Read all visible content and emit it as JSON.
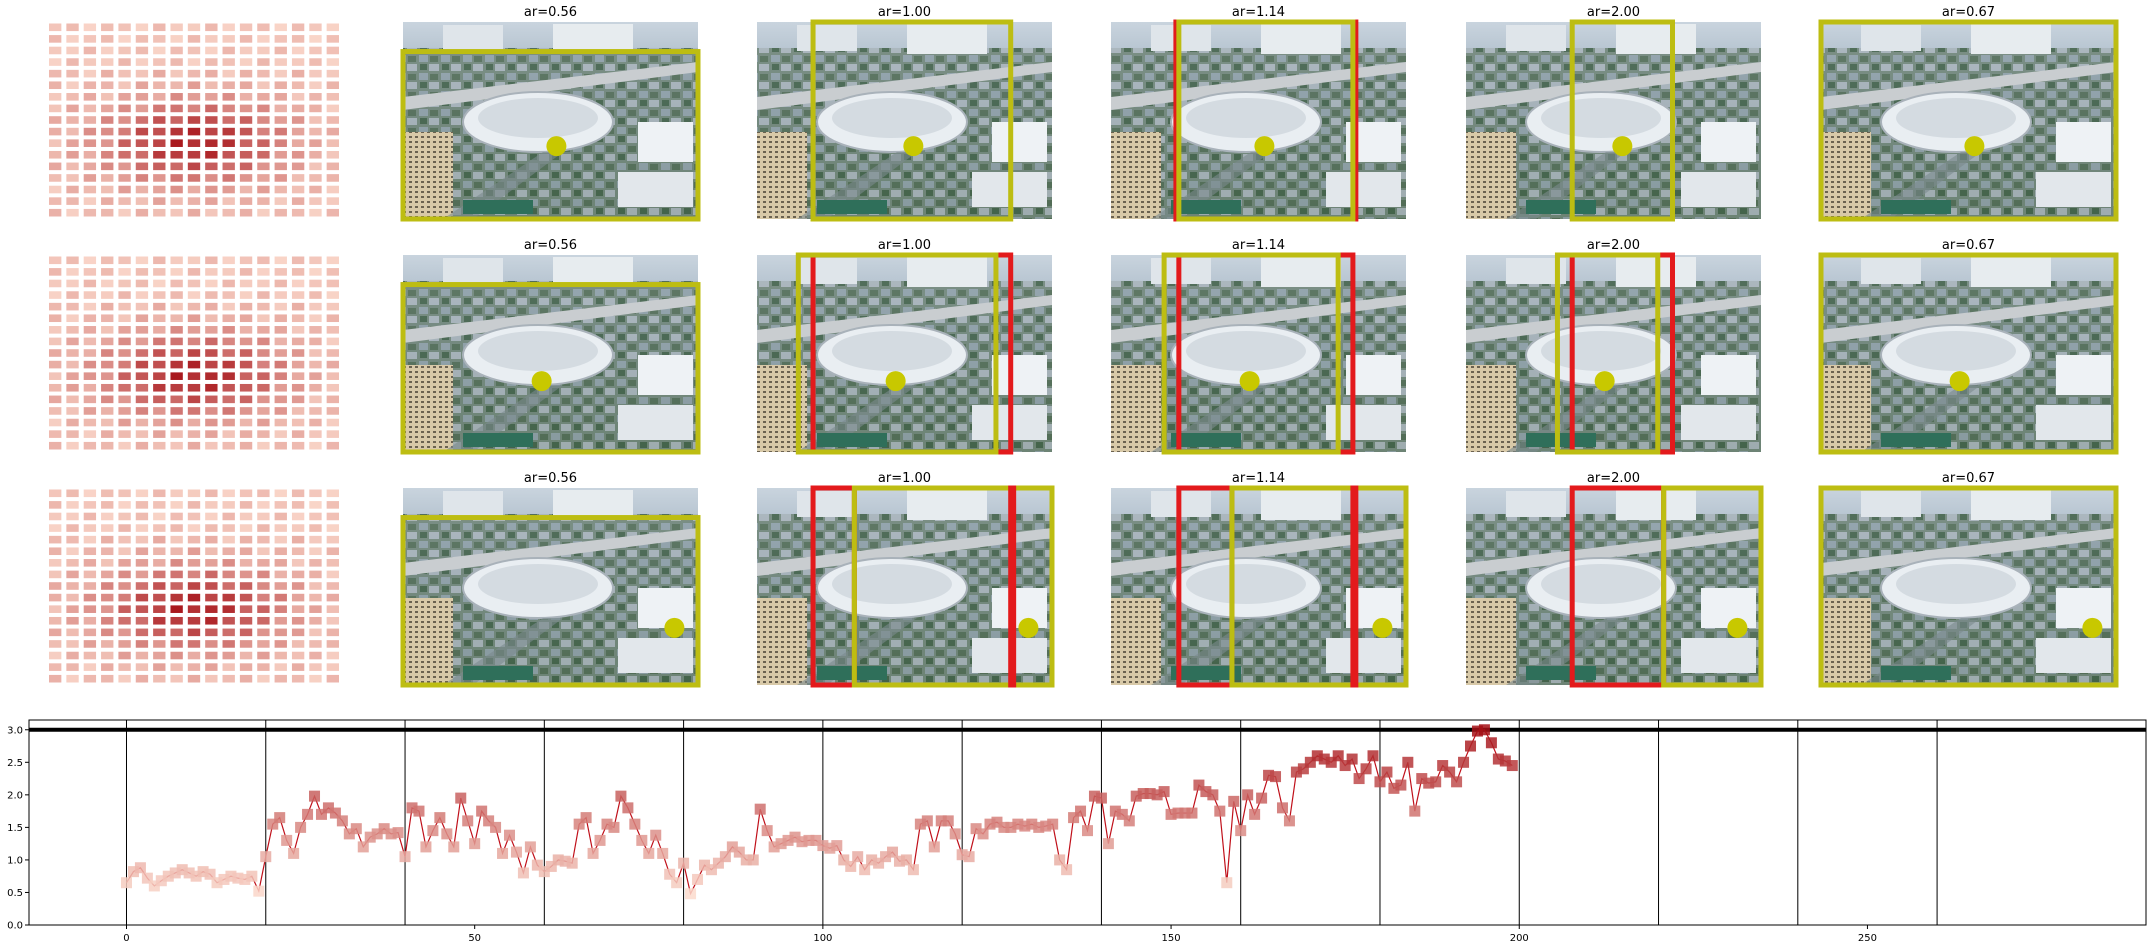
{
  "figure": {
    "rows": [
      {
        "titles": [
          "",
          "ar=0.56",
          "ar=1.00",
          "ar=1.14",
          "ar=2.00",
          "ar=0.67"
        ]
      },
      {
        "titles": [
          "",
          "ar=0.56",
          "ar=1.00",
          "ar=1.14",
          "ar=2.00",
          "ar=0.67"
        ]
      },
      {
        "titles": [
          "",
          "ar=0.56",
          "ar=1.00",
          "ar=1.14",
          "ar=2.00",
          "ar=0.67"
        ]
      }
    ],
    "colors": {
      "crop_box": "#bdbd12",
      "alt_box": "#e31a1c",
      "point": "#c8c800",
      "heat_low": "#fee0d2",
      "heat_high": "#a50f15",
      "line": "#c0101a"
    }
  },
  "chart_data": {
    "type": "line",
    "title": "",
    "xlabel": "",
    "ylabel": "",
    "xlim": [
      -14,
      290
    ],
    "ylim": [
      0,
      3.15
    ],
    "xticks": [
      0,
      50,
      100,
      150,
      200,
      250
    ],
    "yticks": [
      0.0,
      0.5,
      1.0,
      1.5,
      2.0,
      2.5,
      3.0
    ],
    "xtick_labels": [
      "0",
      "50",
      "100",
      "150",
      "200",
      "250"
    ],
    "ytick_labels": [
      "0.0",
      "0.5",
      "1.0",
      "1.5",
      "2.0",
      "2.5",
      "3.0"
    ],
    "hline": 3.0,
    "vlines": [
      0,
      20,
      40,
      60,
      80,
      100,
      120,
      140,
      160,
      180,
      200,
      220,
      240,
      260
    ],
    "grid": false,
    "legend": "none",
    "series": [
      {
        "x_start": 0,
        "values": [
          0.65,
          0.82,
          0.88,
          0.72,
          0.6,
          0.68,
          0.75,
          0.8,
          0.85,
          0.8,
          0.75,
          0.82,
          0.78,
          0.65,
          0.7,
          0.75,
          0.72,
          0.7,
          0.75,
          0.52,
          1.05,
          1.55,
          1.65,
          1.3,
          1.1,
          1.5,
          1.7,
          1.98,
          1.7,
          1.8,
          1.72,
          1.6,
          1.4,
          1.48,
          1.2,
          1.35,
          1.4,
          1.48,
          1.4,
          1.42,
          1.05,
          1.8,
          1.75,
          1.2,
          1.45,
          1.65,
          1.4,
          1.2,
          1.95,
          1.6,
          1.25,
          1.75,
          1.6,
          1.5,
          1.1,
          1.38,
          1.12,
          0.8,
          1.2,
          0.92,
          0.82,
          0.9,
          1.0,
          0.98,
          0.95,
          1.55,
          1.65,
          1.1,
          1.3,
          1.55,
          1.5,
          1.98,
          1.8,
          1.55,
          1.3,
          1.1,
          1.38,
          1.1,
          0.78,
          0.65,
          0.95,
          0.48,
          0.7,
          0.92,
          0.85,
          0.95,
          1.05,
          1.2,
          1.12,
          1.0,
          1.0,
          1.78,
          1.45,
          1.2,
          1.25,
          1.3,
          1.35,
          1.28,
          1.3,
          1.3,
          1.22,
          1.18,
          1.22,
          1.0,
          0.9,
          1.05,
          0.85,
          1.0,
          0.95,
          1.05,
          1.12,
          0.98,
          1.0,
          0.85,
          1.55,
          1.6,
          1.2,
          1.6,
          1.6,
          1.4,
          1.08,
          1.05,
          1.48,
          1.4,
          1.55,
          1.58,
          1.5,
          1.5,
          1.55,
          1.52,
          1.55,
          1.5,
          1.52,
          1.55,
          1.0,
          0.85,
          1.65,
          1.75,
          1.45,
          1.98,
          1.95,
          1.25,
          1.75,
          1.7,
          1.6,
          1.98,
          2.02,
          2.02,
          2.0,
          2.05,
          1.7,
          1.72,
          1.72,
          1.72,
          2.15,
          2.05,
          2.0,
          1.75,
          0.65,
          1.9,
          1.45,
          2.0,
          1.7,
          1.95,
          2.3,
          2.28,
          1.8,
          1.6,
          2.35,
          2.4,
          2.5,
          2.6,
          2.55,
          2.5,
          2.6,
          2.45,
          2.55,
          2.25,
          2.4,
          2.6,
          2.2,
          2.35,
          2.1,
          2.15,
          2.5,
          1.75,
          2.25,
          2.18,
          2.2,
          2.45,
          2.35,
          2.2,
          2.5,
          2.75,
          2.98,
          3.0,
          2.8,
          2.55,
          2.52,
          2.45
        ]
      }
    ]
  }
}
